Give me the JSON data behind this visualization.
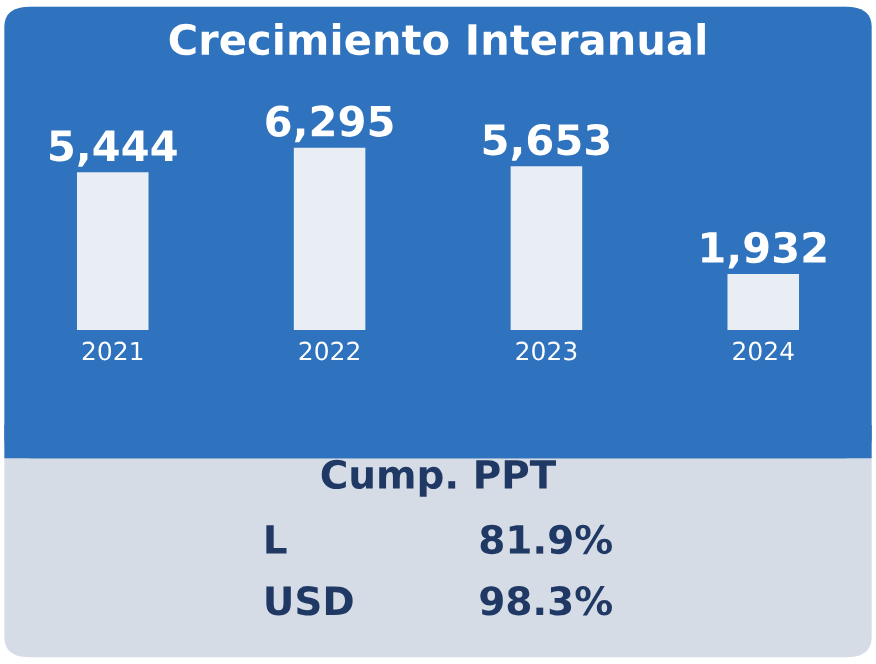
{
  "chart_data": [
    {
      "type": "bar",
      "title": "Crecimiento Interanual",
      "categories": [
        "2021",
        "2022",
        "2023",
        "2024"
      ],
      "values": [
        5444,
        6295,
        5653,
        1932
      ],
      "value_labels": [
        "5,444",
        "6,295",
        "5,653",
        "1,932"
      ],
      "color": "#e9edf4"
    },
    {
      "type": "other",
      "title": "Cump. PPT",
      "categories": [
        "L",
        "USD"
      ],
      "value_labels": [
        "81.9%",
        "98.3%"
      ]
    }
  ]
}
